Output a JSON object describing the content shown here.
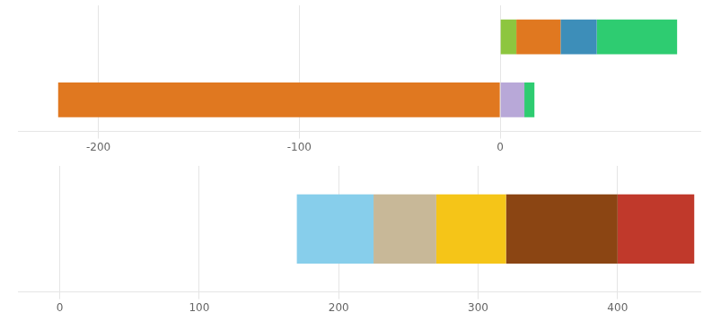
{
  "chart_data": [
    {
      "type": "bar",
      "orientation": "horizontal",
      "stacked": true,
      "categories": [
        null,
        null
      ],
      "series": [
        {
          "color": "#8dc63f",
          "values": [
            null,
            8
          ]
        },
        {
          "color": "#e07820",
          "values": [
            -220,
            22
          ]
        },
        {
          "color": "#b8a8d8",
          "values": [
            12,
            null
          ]
        },
        {
          "color": "#3d8eb9",
          "values": [
            null,
            18
          ]
        },
        {
          "color": "#2ecc71",
          "values": [
            5,
            40
          ]
        }
      ],
      "xlim": [
        -240,
        100
      ],
      "xticks": [
        -200,
        -100,
        0
      ],
      "grid": true,
      "tick_labels": "x"
    },
    {
      "type": "bar",
      "orientation": "horizontal",
      "stacked": true,
      "categories": [
        null
      ],
      "start": 170,
      "series": [
        {
          "color": "#87ceeb",
          "values": [
            55
          ]
        },
        {
          "color": "#c8b898",
          "values": [
            45
          ]
        },
        {
          "color": "#f5c518",
          "values": [
            50
          ]
        },
        {
          "color": "#8b4513",
          "values": [
            80
          ]
        },
        {
          "color": "#c0392b",
          "values": [
            55
          ]
        }
      ],
      "xlim": [
        -30,
        460
      ],
      "xticks": [
        0,
        100,
        200,
        300,
        400
      ],
      "grid": true,
      "tick_labels": "x"
    }
  ]
}
